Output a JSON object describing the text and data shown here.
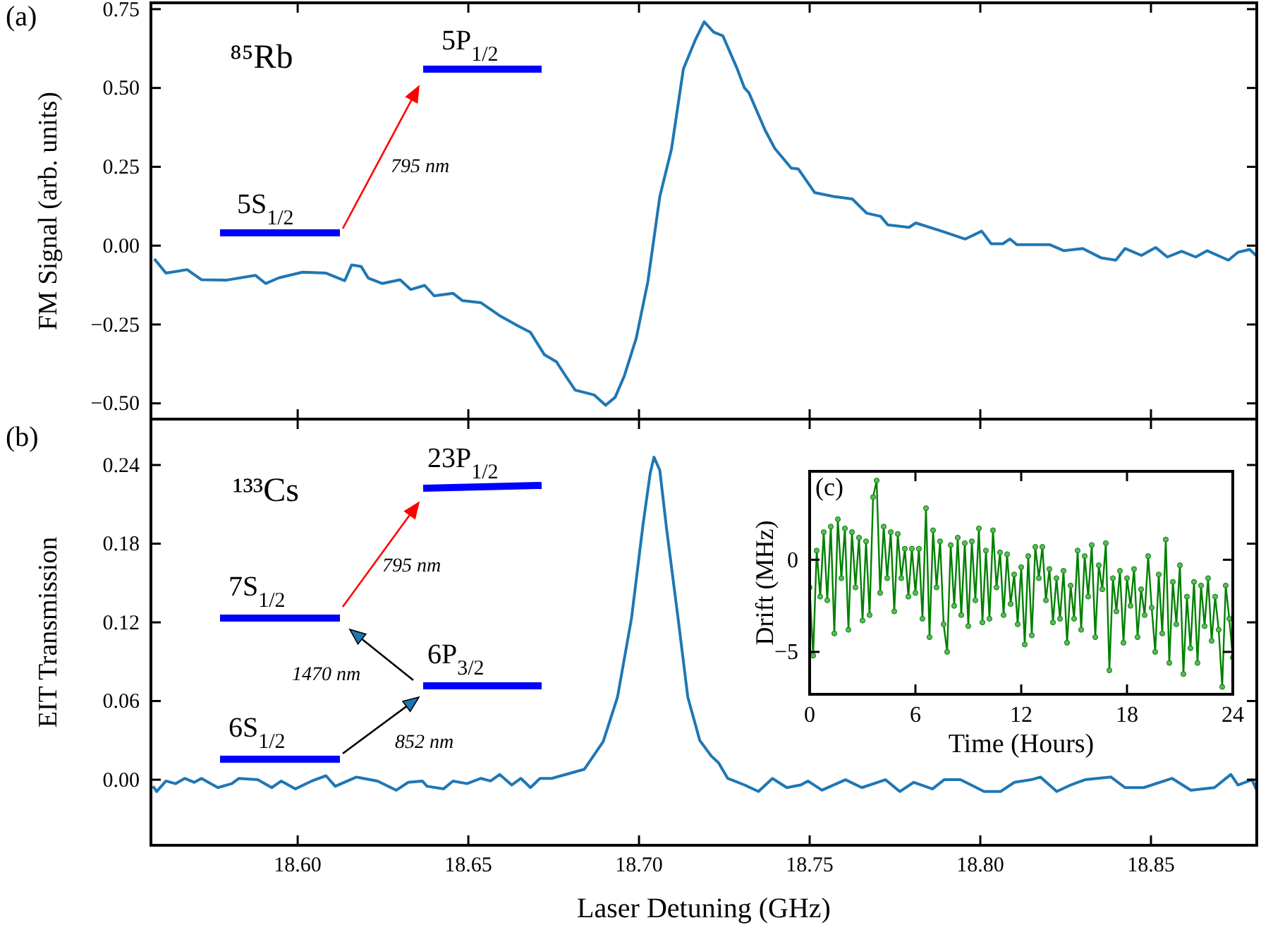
{
  "chart_data": [
    {
      "type": "line",
      "title": "(a)",
      "ylabel": "FM Signal (arb. units)",
      "xlim": [
        18.557,
        18.881
      ],
      "ylim": [
        -0.55,
        0.77
      ],
      "xticks": [
        18.6,
        18.65,
        18.7,
        18.75,
        18.8,
        18.85
      ],
      "yticks": [
        {
          "value": -0.5,
          "label": "−0.50"
        },
        {
          "value": -0.25,
          "label": "−0.25"
        },
        {
          "value": 0,
          "label": "0.00"
        },
        {
          "value": 0.25,
          "label": "0.25"
        },
        {
          "value": 0.5,
          "label": "0.50"
        },
        {
          "value": 0.75,
          "label": "0.75"
        }
      ],
      "tick_labels": "y",
      "grid": false,
      "marker": "none",
      "line_style": "solid",
      "annotations": [
        "⁸⁵Rb",
        "5S$_{1/2}$",
        "5P$_{1/2}$",
        "795 nm"
      ],
      "series": [
        {
          "color": "#1f77b4",
          "x": [
            18.558,
            18.5614,
            18.5676,
            18.5718,
            18.5793,
            18.5876,
            18.5906,
            18.5945,
            18.6014,
            18.6083,
            18.6138,
            18.6158,
            18.6186,
            18.6207,
            18.6248,
            18.63,
            18.6331,
            18.6372,
            18.64,
            18.6455,
            18.6482,
            18.6537,
            18.6592,
            18.6648,
            18.6682,
            18.6723,
            18.6758,
            18.6785,
            18.6813,
            18.6868,
            18.6902,
            18.693,
            18.6957,
            18.6992,
            18.7026,
            18.7061,
            18.7095,
            18.713,
            18.7164,
            18.7191,
            18.7219,
            18.7246,
            18.7288,
            18.7309,
            18.7322,
            18.737,
            18.7398,
            18.7446,
            18.7467,
            18.7515,
            18.757,
            18.7625,
            18.7667,
            18.7708,
            18.7729,
            18.7791,
            18.7811,
            18.7887,
            18.7956,
            18.8004,
            18.8032,
            18.8066,
            18.8087,
            18.8107,
            18.8204,
            18.8245,
            18.83,
            18.8355,
            18.8397,
            18.8424,
            18.8472,
            18.8514,
            18.8548,
            18.859,
            18.8631,
            18.8665,
            18.8727,
            18.8755,
            18.8789,
            18.881
          ],
          "values": [
            -0.042,
            -0.087,
            -0.076,
            -0.108,
            -0.109,
            -0.094,
            -0.12,
            -0.102,
            -0.084,
            -0.087,
            -0.111,
            -0.061,
            -0.066,
            -0.103,
            -0.12,
            -0.108,
            -0.139,
            -0.126,
            -0.159,
            -0.151,
            -0.174,
            -0.181,
            -0.222,
            -0.256,
            -0.275,
            -0.346,
            -0.368,
            -0.413,
            -0.458,
            -0.473,
            -0.506,
            -0.481,
            -0.413,
            -0.293,
            -0.114,
            0.156,
            0.305,
            0.56,
            0.65,
            0.71,
            0.677,
            0.665,
            0.56,
            0.5,
            0.485,
            0.365,
            0.308,
            0.246,
            0.243,
            0.168,
            0.156,
            0.148,
            0.103,
            0.093,
            0.066,
            0.058,
            0.072,
            0.046,
            0.021,
            0.046,
            0.006,
            0.006,
            0.021,
            0.003,
            0.003,
            -0.016,
            -0.009,
            -0.039,
            -0.046,
            -0.009,
            -0.031,
            -0.006,
            -0.036,
            -0.018,
            -0.036,
            -0.016,
            -0.046,
            -0.021,
            -0.012,
            -0.033
          ]
        }
      ]
    },
    {
      "type": "line",
      "title": "(b)",
      "ylabel": "EIT Transmission",
      "xlabel": "Laser Detuning (GHz)",
      "xlim": [
        18.557,
        18.881
      ],
      "ylim": [
        -0.05,
        0.275
      ],
      "xticks": [
        {
          "value": 18.6,
          "label": "18.60"
        },
        {
          "value": 18.65,
          "label": "18.65"
        },
        {
          "value": 18.7,
          "label": "18.70"
        },
        {
          "value": 18.75,
          "label": "18.75"
        },
        {
          "value": 18.8,
          "label": "18.80"
        },
        {
          "value": 18.85,
          "label": "18.85"
        }
      ],
      "yticks": [
        {
          "value": 0,
          "label": "0.00"
        },
        {
          "value": 0.06,
          "label": "0.06"
        },
        {
          "value": 0.12,
          "label": "0.12"
        },
        {
          "value": 0.18,
          "label": "0.18"
        },
        {
          "value": 0.24,
          "label": "0.24"
        }
      ],
      "grid": false,
      "marker": "none",
      "line_style": "solid",
      "annotations": [
        "¹³³Cs",
        "23P$_{1/2}$",
        "7S$_{1/2}$",
        "6P$_{3/2}$",
        "6S$_{1/2}$",
        "795 nm",
        "1470 nm",
        "852 nm"
      ],
      "series": [
        {
          "color": "#1f77b4",
          "x": [
            18.5576,
            18.5587,
            18.5614,
            18.5642,
            18.5669,
            18.5697,
            18.5718,
            18.5766,
            18.5807,
            18.5828,
            18.5883,
            18.5924,
            18.5952,
            18.5993,
            18.6041,
            18.6083,
            18.611,
            18.6172,
            18.6234,
            18.6289,
            18.6324,
            18.6365,
            18.6379,
            18.6427,
            18.6455,
            18.6496,
            18.6537,
            18.6565,
            18.6592,
            18.6627,
            18.6654,
            18.6682,
            18.671,
            18.6744,
            18.684,
            18.6895,
            18.6937,
            18.6978,
            18.7012,
            18.7033,
            18.7044,
            18.7061,
            18.7081,
            18.7116,
            18.7143,
            18.7178,
            18.7212,
            18.7233,
            18.726,
            18.7309,
            18.735,
            18.7391,
            18.7433,
            18.7474,
            18.7495,
            18.7536,
            18.7605,
            18.7653,
            18.7722,
            18.7764,
            18.7805,
            18.786,
            18.7894,
            18.7942,
            18.8011,
            18.8059,
            18.81,
            18.8149,
            18.8176,
            18.8224,
            18.8265,
            18.8307,
            18.8383,
            18.8424,
            18.8479,
            18.8562,
            18.8617,
            18.8686,
            18.8734,
            18.8755,
            18.8796,
            18.881
          ],
          "values": [
            -0.005,
            -0.009,
            -0.001,
            -0.003,
            0.001,
            -0.002,
            0.001,
            -0.006,
            -0.003,
            0.001,
            0,
            -0.006,
            -0.001,
            -0.007,
            -0.001,
            0.003,
            -0.005,
            0.002,
            -0.001,
            -0.008,
            -0.002,
            -0.001,
            -0.005,
            -0.007,
            -0.001,
            -0.003,
            0.001,
            -0.001,
            0.004,
            -0.004,
            0.001,
            -0.006,
            0.001,
            0.001,
            0.008,
            0.029,
            0.063,
            0.123,
            0.195,
            0.234,
            0.246,
            0.236,
            0.191,
            0.12,
            0.063,
            0.03,
            0.018,
            0.013,
            0.001,
            -0.004,
            -0.009,
            0.001,
            -0.006,
            -0.004,
            -0.001,
            -0.008,
            0,
            -0.006,
            0,
            -0.009,
            -0.002,
            -0.007,
            0,
            0,
            -0.009,
            -0.009,
            -0.002,
            0,
            0.002,
            -0.009,
            -0.004,
            0,
            0.002,
            -0.006,
            -0.006,
            0.001,
            -0.008,
            -0.006,
            0.004,
            -0.004,
            0,
            -0.008
          ]
        }
      ]
    },
    {
      "type": "line",
      "title": "(c)",
      "xlabel": "Time (Hours)",
      "ylabel": "Drift (MHz)",
      "xlim": [
        0,
        24
      ],
      "ylim": [
        -7.3,
        4.8
      ],
      "xticks": [
        0,
        6,
        12,
        18,
        24
      ],
      "yticks": [
        {
          "value": -5,
          "label": "−5"
        },
        0
      ],
      "grid": false,
      "marker": "circle",
      "line_style": "solid",
      "series": [
        {
          "color": "#008000",
          "x": [
            0,
            0.2,
            0.4,
            0.6,
            0.8,
            1,
            1.2,
            1.4,
            1.6,
            1.8,
            2,
            2.2,
            2.4,
            2.6,
            2.8,
            3,
            3.2,
            3.4,
            3.6,
            3.8,
            4,
            4.2,
            4.4,
            4.6,
            4.8,
            5,
            5.2,
            5.4,
            5.6,
            5.8,
            6,
            6.2,
            6.4,
            6.6,
            6.8,
            7,
            7.2,
            7.4,
            7.6,
            7.8,
            8,
            8.2,
            8.4,
            8.6,
            8.8,
            9,
            9.2,
            9.4,
            9.6,
            9.8,
            10,
            10.2,
            10.4,
            10.6,
            10.8,
            11,
            11.2,
            11.4,
            11.6,
            11.8,
            12,
            12.2,
            12.4,
            12.6,
            12.8,
            13,
            13.2,
            13.4,
            13.6,
            13.8,
            14,
            14.2,
            14.4,
            14.6,
            14.8,
            15,
            15.2,
            15.4,
            15.6,
            15.8,
            16,
            16.2,
            16.4,
            16.6,
            16.8,
            17,
            17.2,
            17.4,
            17.6,
            17.8,
            18,
            18.2,
            18.4,
            18.6,
            18.8,
            19,
            19.2,
            19.4,
            19.6,
            19.8,
            20,
            20.2,
            20.4,
            20.6,
            20.8,
            21,
            21.2,
            21.4,
            21.6,
            21.8,
            22,
            22.2,
            22.4,
            22.6,
            22.8,
            23,
            23.2,
            23.4,
            23.6,
            23.8,
            24
          ],
          "values": [
            -1.5,
            -5.2,
            0.5,
            -2,
            1.5,
            -2.2,
            1.8,
            -4,
            2.2,
            -1,
            1.7,
            -3.8,
            1.5,
            -1.5,
            1.2,
            -3.3,
            1,
            -3,
            3.4,
            4.3,
            -1.8,
            1.8,
            -1,
            1.5,
            -2.8,
            1.4,
            -1,
            0.6,
            -2,
            0.6,
            -1.8,
            0.6,
            -3.2,
            2.8,
            -4.2,
            1.6,
            -1.5,
            1,
            -3.5,
            -5,
            0.8,
            -2.5,
            1.2,
            -3,
            0.9,
            -3.6,
            1,
            -2.2,
            1.7,
            -3.4,
            0.5,
            -3.2,
            1.6,
            -1.5,
            0.4,
            -3,
            0.3,
            -2.4,
            -0.8,
            -3.5,
            -0.4,
            -4.6,
            0.2,
            -4.1,
            0.7,
            -1,
            0.7,
            -2.2,
            -0.5,
            -3.4,
            -1,
            -3.2,
            -0.6,
            -4.5,
            -1.4,
            -3.2,
            0.5,
            -3.8,
            0.2,
            -2,
            0.8,
            -4.2,
            -0.3,
            -1.6,
            0.9,
            -6,
            -1,
            -2.8,
            -0.6,
            -4.5,
            -1,
            -2.5,
            -0.5,
            -4.2,
            -1.6,
            -3,
            0.2,
            -2.6,
            -5,
            -0.8,
            -4,
            1.1,
            -5.6,
            -1.2,
            -3.5,
            -0.3,
            -6.2,
            -2,
            -4.8,
            -1.2,
            -5.6,
            -1.4,
            -3.6,
            -1,
            -4.4,
            -2,
            -3.8,
            -6.9,
            -1.4,
            -3.2,
            -5.3
          ]
        }
      ]
    }
  ]
}
